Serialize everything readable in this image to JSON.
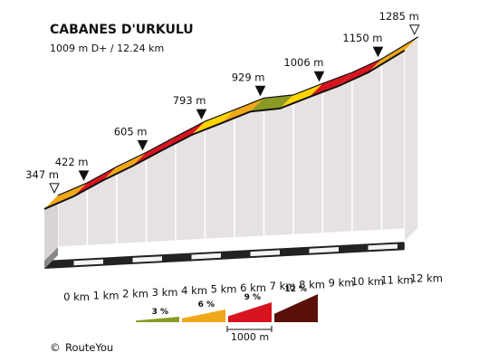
{
  "chart_data": {
    "type": "area",
    "title": "CABANES D'URKULU",
    "subtitle": "1009 m D+ / 12.24 km",
    "x_unit": "km",
    "km_ticks": [
      0,
      1,
      2,
      3,
      4,
      5,
      6,
      7,
      8,
      9,
      10,
      11,
      12
    ],
    "km_tick_labels": [
      "0 km",
      "1 km",
      "2 km",
      "3 km",
      "4 km",
      "5 km",
      "6 km",
      "7 km",
      "8 km",
      "9 km",
      "10 km",
      "11 km",
      "12 km"
    ],
    "profile": {
      "x_km": [
        0,
        1,
        2,
        3,
        4,
        5,
        6,
        7,
        8,
        9,
        10,
        11,
        12.24
      ],
      "elevation_m": [
        347,
        422,
        520,
        605,
        700,
        793,
        860,
        929,
        939,
        1006,
        1070,
        1150,
        1285
      ]
    },
    "segment_colors": [
      "#f0a818",
      "#d8141e",
      "#f0a818",
      "#d8141e",
      "#d8141e",
      "#ffd500",
      "#f0a818",
      "#8a9a24",
      "#ffd500",
      "#d8141e",
      "#d8141e",
      "#f0a818"
    ],
    "markers": [
      {
        "km": 0,
        "elevation_m": 347,
        "label": "347 m",
        "style": "open"
      },
      {
        "km": 1,
        "elevation_m": 422,
        "label": "422 m",
        "style": "filled"
      },
      {
        "km": 3,
        "elevation_m": 605,
        "label": "605 m",
        "style": "filled"
      },
      {
        "km": 5,
        "elevation_m": 793,
        "label": "793 m",
        "style": "filled"
      },
      {
        "km": 7,
        "elevation_m": 929,
        "label": "929 m",
        "style": "filled"
      },
      {
        "km": 9,
        "elevation_m": 1006,
        "label": "1006 m",
        "style": "filled"
      },
      {
        "km": 11,
        "elevation_m": 1150,
        "label": "1150 m",
        "style": "filled"
      },
      {
        "km": 12.24,
        "elevation_m": 1285,
        "label": "1285 m",
        "style": "open"
      }
    ],
    "legend": [
      {
        "label": "3 %",
        "color": "#8a9a24"
      },
      {
        "label": "6 %",
        "color": "#f0a818"
      },
      {
        "label": "9 %",
        "color": "#d8141e"
      },
      {
        "label": "12 %",
        "color": "#5a1008"
      }
    ],
    "scale_bar_label": "1000 m"
  },
  "footer": {
    "brand": "RouteYou",
    "copyright_symbol": "©"
  }
}
